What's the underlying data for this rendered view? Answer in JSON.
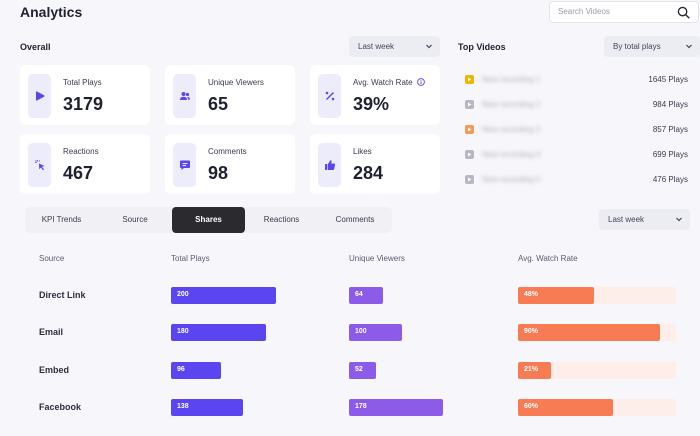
{
  "app": {
    "title": "Analytics"
  },
  "search": {
    "placeholder": "Search Videos"
  },
  "overall": {
    "label": "Overall",
    "period": "Last week",
    "kpis": [
      {
        "label": "Total Plays",
        "value": "3179",
        "icon": "play-icon"
      },
      {
        "label": "Unique Viewers",
        "value": "65",
        "icon": "users-icon"
      },
      {
        "label": "Avg. Watch Rate",
        "value": "39%",
        "icon": "percent-icon",
        "has_info": true
      },
      {
        "label": "Reactions",
        "value": "467",
        "icon": "cursor-click-icon"
      },
      {
        "label": "Comments",
        "value": "98",
        "icon": "comment-icon"
      },
      {
        "label": "Likes",
        "value": "284",
        "icon": "thumbs-up-icon"
      }
    ]
  },
  "top_videos": {
    "label": "Top Videos",
    "sort": "By total plays",
    "items": [
      {
        "title": "New recording 1",
        "plays": "1645 Plays",
        "thumb_color": "#f5b400"
      },
      {
        "title": "New recording 2",
        "plays": "984 Plays",
        "thumb_color": "#b8b8c4"
      },
      {
        "title": "New recording 3",
        "plays": "857 Plays",
        "thumb_color": "#f19a5a"
      },
      {
        "title": "New recording 4",
        "plays": "699 Plays",
        "thumb_color": "#b8b8c4"
      },
      {
        "title": "New recording 5",
        "plays": "476 Plays",
        "thumb_color": "#b8b8c4"
      }
    ]
  },
  "tabs": [
    {
      "label": "KPI Trends",
      "active": false
    },
    {
      "label": "Source",
      "active": false
    },
    {
      "label": "Shares",
      "active": true
    },
    {
      "label": "Reactions",
      "active": false
    },
    {
      "label": "Comments",
      "active": false
    }
  ],
  "shares_period": "Last week",
  "shares_table": {
    "columns": [
      "Source",
      "Total Plays",
      "Unique Viewers",
      "Avg. Watch Rate"
    ],
    "rows": [
      {
        "source": "Direct Link",
        "total_plays": "200",
        "unique_viewers": "64",
        "watch_rate": "48%"
      },
      {
        "source": "Email",
        "total_plays": "180",
        "unique_viewers": "100",
        "watch_rate": "90%"
      },
      {
        "source": "Embed",
        "total_plays": "96",
        "unique_viewers": "52",
        "watch_rate": "21%"
      },
      {
        "source": "Facebook",
        "total_plays": "138",
        "unique_viewers": "178",
        "watch_rate": "60%"
      }
    ]
  },
  "colors": {
    "plays_bar": "#5b45f0",
    "viewers_bar": "#8c5ce8",
    "rate_bar": "#f77b53",
    "rate_track": "#fdeee9",
    "icon_accent": "#5b45f0"
  }
}
